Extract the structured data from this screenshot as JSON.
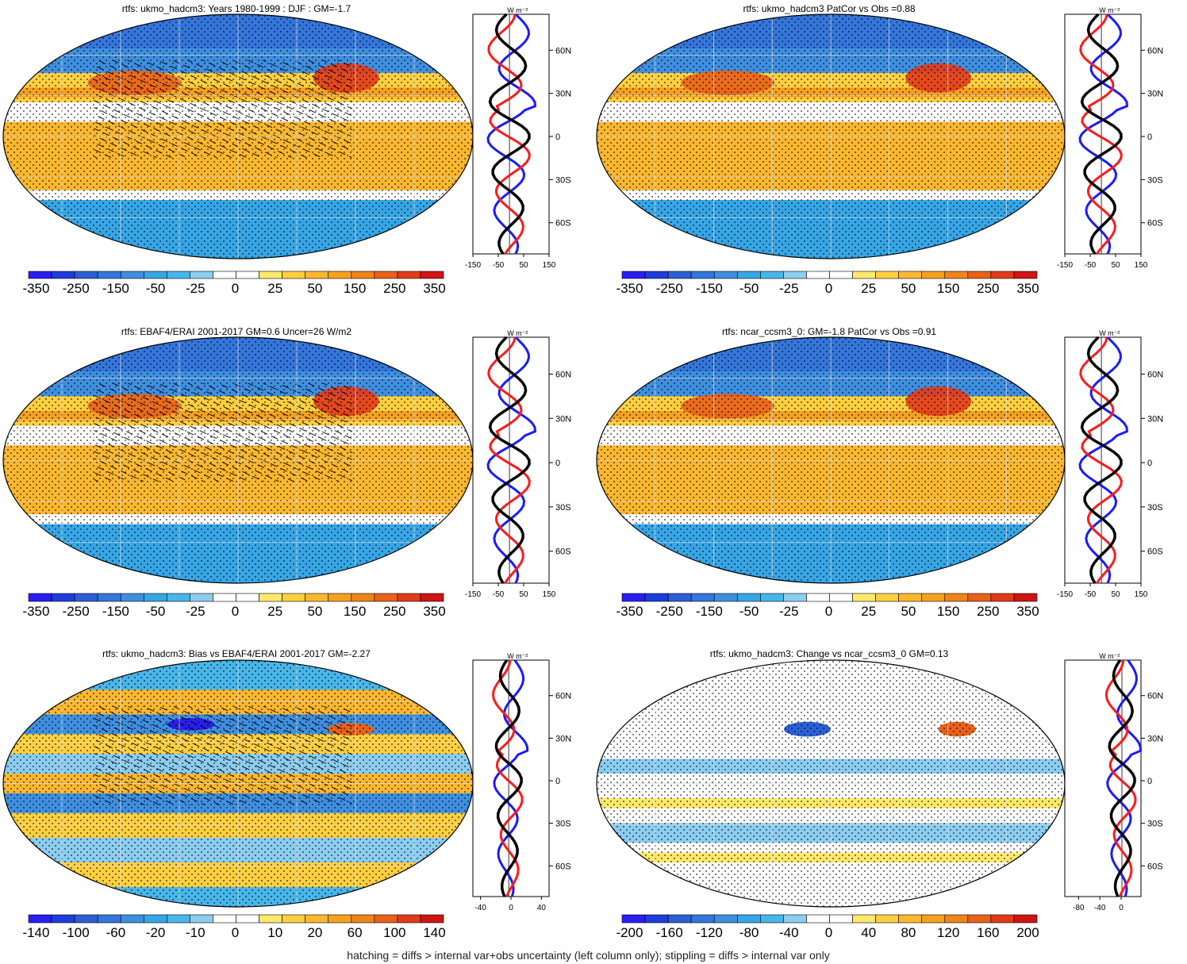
{
  "footnote": "hatching = diffs > internal var+obs uncertainty (left column only); stippling = diffs > internal var only",
  "zonal_units": "W m-2",
  "lat_labels": [
    "60N",
    "30N",
    "0",
    "30S",
    "60S"
  ],
  "colormap": [
    "#2a1ef0",
    "#1f3ddb",
    "#2c5fd6",
    "#3476db",
    "#3f8fe0",
    "#37a6e6",
    "#48b6ea",
    "#8ccdf0",
    "#ffffff",
    "#ffffff",
    "#ffe86a",
    "#ffcf3f",
    "#fbb72e",
    "#f5a11f",
    "#ef8418",
    "#e9611a",
    "#e33a19",
    "#cf1414"
  ],
  "series_colors": {
    "blue": "#1a1aff",
    "red": "#ff1a1a",
    "black": "#000000"
  },
  "chart_data": [
    {
      "type": "map-with-zonal-profile",
      "title": "rtfs: ukmo_hadcm3: Years 1980-1999 : DJF : GM=-1.7",
      "colorbar_ticks": [
        "-350",
        "-250",
        "-150",
        "-50",
        "-25",
        "0",
        "25",
        "50",
        "150",
        "250",
        "350"
      ],
      "profile_xticks": [
        "-150",
        "-50",
        "50",
        "150"
      ]
    },
    {
      "type": "map-with-zonal-profile",
      "title": "rtfs: ukmo_hadcm3 PatCor vs Obs =0.88",
      "colorbar_ticks": [
        "-350",
        "-250",
        "-150",
        "-50",
        "-25",
        "0",
        "25",
        "50",
        "150",
        "250",
        "350"
      ],
      "profile_xticks": [
        "-150",
        "-50",
        "50",
        "150"
      ]
    },
    {
      "type": "map-with-zonal-profile",
      "title": "rtfs: EBAF4/ERAI 2001-2017 GM=0.6 Uncer=26 W/m2",
      "colorbar_ticks": [
        "-350",
        "-250",
        "-150",
        "-50",
        "-25",
        "0",
        "25",
        "50",
        "150",
        "250",
        "350"
      ],
      "profile_xticks": [
        "-150",
        "-50",
        "50",
        "150"
      ]
    },
    {
      "type": "map-with-zonal-profile",
      "title": "rtfs: ncar_ccsm3_0: GM=-1.8 PatCor vs Obs =0.91",
      "colorbar_ticks": [
        "-350",
        "-250",
        "-150",
        "-50",
        "-25",
        "0",
        "25",
        "50",
        "150",
        "250",
        "350"
      ],
      "profile_xticks": [
        "-150",
        "-50",
        "50",
        "150"
      ]
    },
    {
      "type": "map-with-zonal-profile",
      "title": "rtfs: ukmo_hadcm3: Bias vs EBAF4/ERAI 2001-2017 GM=-2.27",
      "colorbar_ticks": [
        "-140",
        "-100",
        "-60",
        "-20",
        "-10",
        "0",
        "10",
        "20",
        "60",
        "100",
        "140"
      ],
      "profile_xticks": [
        "-40",
        "0",
        "40"
      ]
    },
    {
      "type": "map-with-zonal-profile",
      "title": "rtfs: ukmo_hadcm3: Change vs ncar_ccsm3_0 GM=0.13",
      "colorbar_ticks": [
        "-200",
        "-160",
        "-120",
        "-80",
        "-40",
        "0",
        "40",
        "80",
        "120",
        "160",
        "200"
      ],
      "profile_xticks": [
        "-80",
        "-40",
        "0"
      ]
    }
  ]
}
